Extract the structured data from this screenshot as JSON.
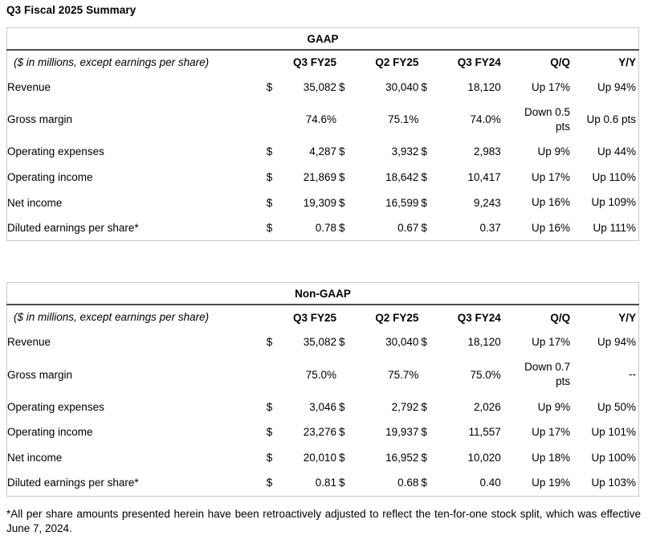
{
  "page": {
    "title": "Q3 Fiscal 2025 Summary",
    "footnote": "*All per share amounts presented herein have been retroactively adjusted to reflect the ten-for-one stock split, which was effective June 7, 2024."
  },
  "columns": {
    "unit_note": "($ in millions, except earnings per share)",
    "headers": [
      "Q3 FY25",
      "Q2 FY25",
      "Q3 FY24",
      "Q/Q",
      "Y/Y"
    ]
  },
  "tables": [
    {
      "title": "GAAP",
      "rows": [
        {
          "label": "Revenue",
          "d1": "$",
          "v1": "35,082",
          "d2": "$",
          "v2": "30,040",
          "d3": "$",
          "v3": "18,120",
          "qq": "Up 17%",
          "yy": "Up 94%"
        },
        {
          "label": "Gross margin",
          "d1": "",
          "v1": "74.6%",
          "d2": "",
          "v2": "75.1%",
          "d3": "",
          "v3": "74.0%",
          "qq": "Down 0.5 pts",
          "yy": "Up 0.6 pts"
        },
        {
          "label": "Operating expenses",
          "d1": "$",
          "v1": "4,287",
          "d2": "$",
          "v2": "3,932",
          "d3": "$",
          "v3": "2,983",
          "qq": "Up 9%",
          "yy": "Up 44%"
        },
        {
          "label": "Operating income",
          "d1": "$",
          "v1": "21,869",
          "d2": "$",
          "v2": "18,642",
          "d3": "$",
          "v3": "10,417",
          "qq": "Up 17%",
          "yy": "Up 110%"
        },
        {
          "label": "Net income",
          "d1": "$",
          "v1": "19,309",
          "d2": "$",
          "v2": "16,599",
          "d3": "$",
          "v3": "9,243",
          "qq": "Up 16%",
          "yy": "Up 109%"
        },
        {
          "label": "Diluted earnings per share*",
          "d1": "$",
          "v1": "0.78",
          "d2": "$",
          "v2": "0.67",
          "d3": "$",
          "v3": "0.37",
          "qq": "Up 16%",
          "yy": "Up 111%"
        }
      ]
    },
    {
      "title": "Non-GAAP",
      "rows": [
        {
          "label": "Revenue",
          "d1": "$",
          "v1": "35,082",
          "d2": "$",
          "v2": "30,040",
          "d3": "$",
          "v3": "18,120",
          "qq": "Up 17%",
          "yy": "Up 94%"
        },
        {
          "label": "Gross margin",
          "d1": "",
          "v1": "75.0%",
          "d2": "",
          "v2": "75.7%",
          "d3": "",
          "v3": "75.0%",
          "qq": "Down 0.7 pts",
          "yy": "--"
        },
        {
          "label": "Operating expenses",
          "d1": "$",
          "v1": "3,046",
          "d2": "$",
          "v2": "2,792",
          "d3": "$",
          "v3": "2,026",
          "qq": "Up 9%",
          "yy": "Up 50%"
        },
        {
          "label": "Operating income",
          "d1": "$",
          "v1": "23,276",
          "d2": "$",
          "v2": "19,937",
          "d3": "$",
          "v3": "11,557",
          "qq": "Up 17%",
          "yy": "Up 101%"
        },
        {
          "label": "Net income",
          "d1": "$",
          "v1": "20,010",
          "d2": "$",
          "v2": "16,952",
          "d3": "$",
          "v3": "10,020",
          "qq": "Up 18%",
          "yy": "Up 100%"
        },
        {
          "label": "Diluted earnings per share*",
          "d1": "$",
          "v1": "0.81",
          "d2": "$",
          "v2": "0.68",
          "d3": "$",
          "v3": "0.40",
          "qq": "Up 19%",
          "yy": "Up 103%"
        }
      ]
    }
  ]
}
